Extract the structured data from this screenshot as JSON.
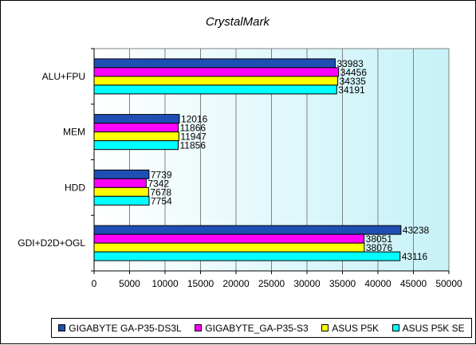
{
  "chart_data": {
    "type": "bar",
    "orientation": "horizontal",
    "title": "CrystalMark",
    "categories": [
      "ALU+FPU",
      "MEM",
      "HDD",
      "GDI+D2D+OGL"
    ],
    "series": [
      {
        "name": "GIGABYTE GA-P35-DS3L",
        "color": "#1f4fb4",
        "values": [
          33983,
          12016,
          7739,
          43238
        ]
      },
      {
        "name": "GIGABYTE_GA-P35-S3",
        "color": "#ff00ff",
        "values": [
          34456,
          11866,
          7342,
          38051
        ]
      },
      {
        "name": "ASUS P5K",
        "color": "#ffff00",
        "values": [
          34335,
          11947,
          7678,
          38076
        ]
      },
      {
        "name": "ASUS P5K SE",
        "color": "#00ffff",
        "values": [
          34191,
          11856,
          7754,
          43116
        ]
      }
    ],
    "xlim": [
      0,
      50000
    ],
    "xticks": [
      "0",
      "5000",
      "10000",
      "15000",
      "20000",
      "25000",
      "30000",
      "35000",
      "40000",
      "45000",
      "50000"
    ],
    "grid": true,
    "legend_position": "bottom",
    "plot_background": "gradient white to light cyan"
  }
}
